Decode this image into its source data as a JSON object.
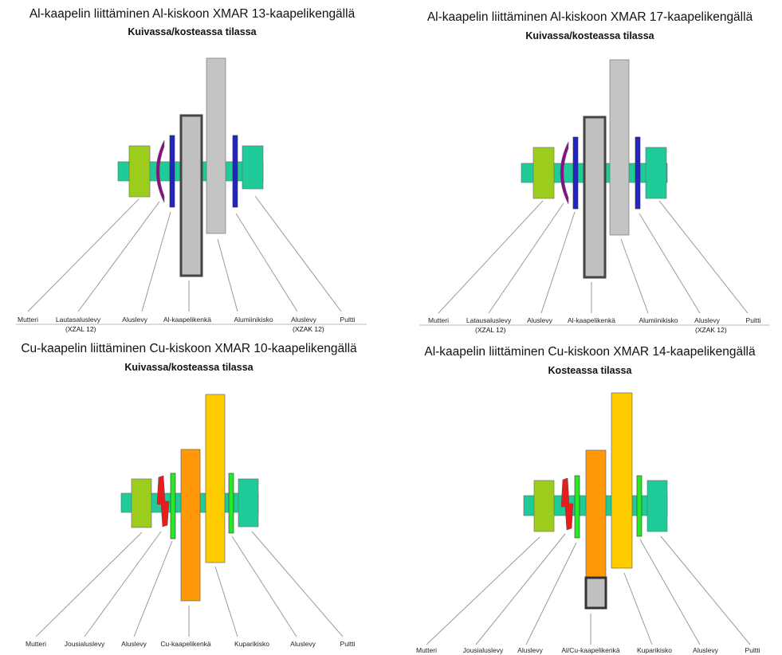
{
  "panels": [
    {
      "title": "Al-kaapelin liittäminen Al-kiskoon XMAR 13-kaapelikengällä",
      "subtitle": "Kuivassa/kosteassa tilassa",
      "labels": [
        "Mutteri",
        "Lautasaluslevy",
        "Aluslevy",
        "Al-kaapelikenkä",
        "Alumiinikisko",
        "Aluslevy",
        "Pultti"
      ],
      "sublabels": [
        "(XZAL 12)",
        "(XZAK 12)"
      ]
    },
    {
      "title": "Al-kaapelin liittäminen Al-kiskoon XMAR 17-kaapelikengällä",
      "subtitle": "Kuivassa/kosteassa tilassa",
      "labels": [
        "Mutteri",
        "Latausaluslevy",
        "Aluslevy",
        "Al-kaapelikenkä",
        "Alumiinikisko",
        "Aluslevy",
        "Pultti"
      ],
      "sublabels": [
        "(XZAL 12)",
        "(XZAK 12)"
      ]
    },
    {
      "title": "Cu-kaapelin liittäminen Cu-kiskoon XMAR 10-kaapelikengällä",
      "subtitle": "Kuivassa/kosteassa tilassa",
      "labels": [
        "Mutteri",
        "Jousialuslevy",
        "Aluslevy",
        "Cu-kaapelikenkä",
        "Kuparikisko",
        "Aluslevy",
        "Pultti"
      ]
    },
    {
      "title": "Al-kaapelin liittäminen Cu-kiskoon XMAR 14-kaapelikengällä",
      "subtitle": "Kosteassa tilassa",
      "labels": [
        "Mutteri",
        "Jousialuslevy",
        "Aluslevy",
        "Al/Cu-kaapelikenkä",
        "Kuparikisko",
        "Aluslevy",
        "Pultti"
      ]
    }
  ],
  "colors": {
    "bolt": "#1fcc99",
    "nut": "#9ccc1c",
    "cup_washer": "#8b0a8b",
    "flat_washer_al": "#2424c0",
    "lug_al": "#c0c0c0",
    "bar_al": "#c4c4c4",
    "spring_washer": "#e81c1c",
    "flat_washer_cu": "#28e828",
    "lug_cu": "#ff990a",
    "bar_cu": "#ffcc00",
    "arrow": "#9a9a9a"
  }
}
